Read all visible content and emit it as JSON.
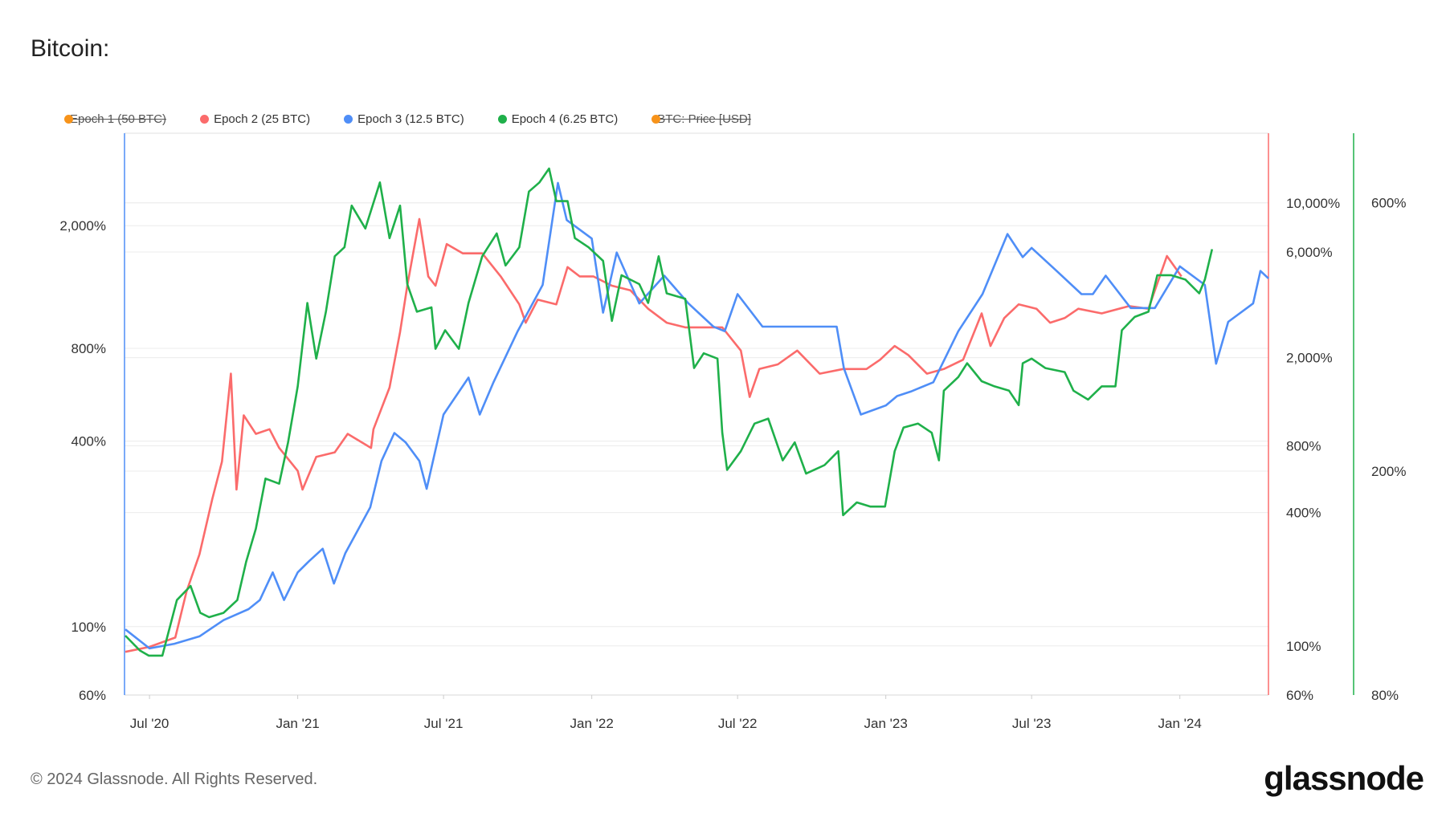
{
  "title": "Bitcoin:",
  "legend": [
    {
      "label": "Epoch 1 (50 BTC)",
      "color": "#f7931a",
      "hidden": true
    },
    {
      "label": "Epoch 2 (25 BTC)",
      "color": "#fb6b6b",
      "hidden": false
    },
    {
      "label": "Epoch 3 (12.5 BTC)",
      "color": "#4f8ef7",
      "hidden": false
    },
    {
      "label": "Epoch 4 (6.25 BTC)",
      "color": "#1fb04a",
      "hidden": false
    },
    {
      "label": "BTC: Price [USD]",
      "color": "#f7931a",
      "hidden": true
    }
  ],
  "footer": "© 2024 Glassnode. All Rights Reserved.",
  "logo": "glassnode",
  "chart_data": {
    "type": "line",
    "x_range": [
      "2020-05-31",
      "2024-04-20"
    ],
    "x_ticks": [
      {
        "date": "2020-07-01",
        "label": "Jul '20"
      },
      {
        "date": "2021-01-01",
        "label": "Jan '21"
      },
      {
        "date": "2021-07-01",
        "label": "Jul '21"
      },
      {
        "date": "2022-01-01",
        "label": "Jan '22"
      },
      {
        "date": "2022-07-01",
        "label": "Jul '22"
      },
      {
        "date": "2023-01-01",
        "label": "Jan '23"
      },
      {
        "date": "2023-07-01",
        "label": "Jul '23"
      },
      {
        "date": "2024-01-01",
        "label": "Jan '24"
      }
    ],
    "axes": {
      "left": {
        "scale": "log",
        "range": [
          60,
          5000
        ],
        "color": "#4f8ef7",
        "ticks": [
          {
            "v": 60,
            "label": "60%"
          },
          {
            "v": 100,
            "label": "100%"
          },
          {
            "v": 400,
            "label": "400%"
          },
          {
            "v": 800,
            "label": "800%"
          },
          {
            "v": 2000,
            "label": "2,000%"
          }
        ]
      },
      "right": {
        "scale": "log",
        "range": [
          60,
          30000
        ],
        "color": "#fb6b6b",
        "ticks": [
          {
            "v": 60,
            "label": "60%"
          },
          {
            "v": 100,
            "label": "100%"
          },
          {
            "v": 400,
            "label": "400%"
          },
          {
            "v": 800,
            "label": "800%"
          },
          {
            "v": 2000,
            "label": "2,000%"
          },
          {
            "v": 6000,
            "label": "6,000%"
          },
          {
            "v": 10000,
            "label": "10,000%"
          }
        ]
      },
      "right2": {
        "scale": "log",
        "range": [
          80,
          860
        ],
        "color": "#1fb04a",
        "ticks": [
          {
            "v": 80,
            "label": "80%"
          },
          {
            "v": 200,
            "label": "200%"
          },
          {
            "v": 600,
            "label": "600%"
          }
        ]
      }
    },
    "grid": true,
    "legend_position": "top-left",
    "series": [
      {
        "name": "Epoch 2 (25 BTC)",
        "axis": "right",
        "color": "#fb6b6b",
        "points": [
          [
            "2020-06-01",
            94
          ],
          [
            "2020-07-01",
            99
          ],
          [
            "2020-08-02",
            109
          ],
          [
            "2020-08-16",
            176
          ],
          [
            "2020-09-01",
            259
          ],
          [
            "2020-09-17",
            461
          ],
          [
            "2020-09-29",
            679
          ],
          [
            "2020-10-10",
            1694
          ],
          [
            "2020-10-17",
            508
          ],
          [
            "2020-10-26",
            1099
          ],
          [
            "2020-11-10",
            906
          ],
          [
            "2020-11-27",
            951
          ],
          [
            "2020-12-09",
            783
          ],
          [
            "2021-01-01",
            617
          ],
          [
            "2021-01-07",
            508
          ],
          [
            "2021-01-24",
            713
          ],
          [
            "2021-02-16",
            748
          ],
          [
            "2021-03-04",
            906
          ],
          [
            "2021-04-02",
            783
          ],
          [
            "2021-04-05",
            951
          ],
          [
            "2021-04-25",
            1466
          ],
          [
            "2021-05-08",
            2612
          ],
          [
            "2021-05-17",
            4227
          ],
          [
            "2021-06-01",
            8453
          ],
          [
            "2021-06-12",
            4656
          ],
          [
            "2021-06-21",
            4227
          ],
          [
            "2021-07-05",
            6516
          ],
          [
            "2021-07-25",
            5916
          ],
          [
            "2021-08-18",
            5916
          ],
          [
            "2021-09-10",
            4656
          ],
          [
            "2021-10-03",
            3483
          ],
          [
            "2021-10-11",
            2877
          ],
          [
            "2021-10-26",
            3656
          ],
          [
            "2021-11-18",
            3483
          ],
          [
            "2021-12-02",
            5129
          ],
          [
            "2021-12-17",
            4656
          ],
          [
            "2022-01-03",
            4656
          ],
          [
            "2022-01-26",
            4227
          ],
          [
            "2022-02-18",
            4027
          ],
          [
            "2022-03-12",
            3327
          ],
          [
            "2022-04-04",
            2877
          ],
          [
            "2022-04-27",
            2742
          ],
          [
            "2022-05-20",
            2742
          ],
          [
            "2022-06-12",
            2742
          ],
          [
            "2022-07-05",
            2153
          ],
          [
            "2022-07-16",
            1330
          ],
          [
            "2022-07-28",
            1778
          ],
          [
            "2022-08-20",
            1866
          ],
          [
            "2022-09-13",
            2153
          ],
          [
            "2022-10-11",
            1694
          ],
          [
            "2022-11-09",
            1778
          ],
          [
            "2022-12-08",
            1778
          ],
          [
            "2022-12-25",
            1959
          ],
          [
            "2023-01-12",
            2259
          ],
          [
            "2023-01-29",
            2056
          ],
          [
            "2023-02-21",
            1694
          ],
          [
            "2023-03-14",
            1778
          ],
          [
            "2023-04-07",
            1959
          ],
          [
            "2023-04-30",
            3170
          ],
          [
            "2023-05-11",
            2259
          ],
          [
            "2023-05-28",
            3020
          ],
          [
            "2023-06-15",
            3483
          ],
          [
            "2023-07-07",
            3327
          ],
          [
            "2023-07-24",
            2877
          ],
          [
            "2023-08-11",
            3020
          ],
          [
            "2023-08-28",
            3327
          ],
          [
            "2023-09-26",
            3170
          ],
          [
            "2023-10-30",
            3420
          ],
          [
            "2023-11-23",
            3327
          ],
          [
            "2023-12-16",
            5754
          ],
          [
            "2024-01-03",
            4656
          ]
        ]
      },
      {
        "name": "Epoch 3 (12.5 BTC)",
        "axis": "left",
        "color": "#4f8ef7",
        "points": [
          [
            "2020-06-01",
            98
          ],
          [
            "2020-07-01",
            85
          ],
          [
            "2020-08-01",
            88
          ],
          [
            "2020-09-01",
            93
          ],
          [
            "2020-10-01",
            105
          ],
          [
            "2020-11-01",
            114
          ],
          [
            "2020-11-15",
            122
          ],
          [
            "2020-12-01",
            150
          ],
          [
            "2020-12-15",
            122
          ],
          [
            "2021-01-01",
            150
          ],
          [
            "2021-01-15",
            163
          ],
          [
            "2021-02-01",
            179
          ],
          [
            "2021-02-15",
            138
          ],
          [
            "2021-03-01",
            173
          ],
          [
            "2021-04-01",
            244
          ],
          [
            "2021-04-15",
            345
          ],
          [
            "2021-05-01",
            425
          ],
          [
            "2021-05-15",
            396
          ],
          [
            "2021-06-01",
            345
          ],
          [
            "2021-06-10",
            280
          ],
          [
            "2021-07-01",
            488
          ],
          [
            "2021-08-01",
            643
          ],
          [
            "2021-08-15",
            488
          ],
          [
            "2021-09-01",
            621
          ],
          [
            "2021-10-01",
            909
          ],
          [
            "2021-11-01",
            1285
          ],
          [
            "2021-11-20",
            2754
          ],
          [
            "2021-12-01",
            2086
          ],
          [
            "2022-01-01",
            1817
          ],
          [
            "2022-01-15",
            1044
          ],
          [
            "2022-02-01",
            1637
          ],
          [
            "2022-03-01",
            1119
          ],
          [
            "2022-04-01",
            1377
          ],
          [
            "2022-05-01",
            1119
          ],
          [
            "2022-06-01",
            941
          ],
          [
            "2022-06-15",
            909
          ],
          [
            "2022-07-01",
            1199
          ],
          [
            "2022-08-01",
            941
          ],
          [
            "2022-09-01",
            941
          ],
          [
            "2022-10-01",
            941
          ],
          [
            "2022-11-01",
            941
          ],
          [
            "2022-11-10",
            689
          ],
          [
            "2022-12-01",
            488
          ],
          [
            "2023-01-01",
            522
          ],
          [
            "2023-01-15",
            560
          ],
          [
            "2023-02-01",
            579
          ],
          [
            "2023-03-01",
            621
          ],
          [
            "2023-04-01",
            909
          ],
          [
            "2023-05-01",
            1199
          ],
          [
            "2023-06-01",
            1879
          ],
          [
            "2023-06-20",
            1581
          ],
          [
            "2023-07-01",
            1694
          ],
          [
            "2023-08-01",
            1426
          ],
          [
            "2023-09-01",
            1199
          ],
          [
            "2023-09-15",
            1199
          ],
          [
            "2023-10-01",
            1377
          ],
          [
            "2023-11-01",
            1081
          ],
          [
            "2023-12-01",
            1081
          ],
          [
            "2024-01-01",
            1476
          ],
          [
            "2024-02-01",
            1285
          ],
          [
            "2024-02-15",
            713
          ],
          [
            "2024-03-01",
            975
          ],
          [
            "2024-04-01",
            1119
          ],
          [
            "2024-04-10",
            1426
          ],
          [
            "2024-04-20",
            1349
          ]
        ]
      },
      {
        "name": "Epoch 4 (6.25 BTC)",
        "axis": "right2",
        "color": "#1fb04a",
        "points": [
          [
            "2020-06-01",
            102
          ],
          [
            "2020-06-19",
            96
          ],
          [
            "2020-06-30",
            94
          ],
          [
            "2020-07-17",
            94
          ],
          [
            "2020-08-04",
            118
          ],
          [
            "2020-08-21",
            125
          ],
          [
            "2020-09-02",
            112
          ],
          [
            "2020-09-13",
            110
          ],
          [
            "2020-10-01",
            112
          ],
          [
            "2020-10-18",
            118
          ],
          [
            "2020-10-29",
            138
          ],
          [
            "2020-11-10",
            158
          ],
          [
            "2020-11-22",
            194
          ],
          [
            "2020-12-09",
            190
          ],
          [
            "2020-12-20",
            225
          ],
          [
            "2021-01-01",
            283
          ],
          [
            "2021-01-13",
            398
          ],
          [
            "2021-01-24",
            317
          ],
          [
            "2021-02-05",
            384
          ],
          [
            "2021-02-16",
            482
          ],
          [
            "2021-02-28",
            500
          ],
          [
            "2021-03-09",
            593
          ],
          [
            "2021-03-26",
            540
          ],
          [
            "2021-04-13",
            652
          ],
          [
            "2021-04-25",
            519
          ],
          [
            "2021-05-08",
            593
          ],
          [
            "2021-05-17",
            430
          ],
          [
            "2021-05-29",
            384
          ],
          [
            "2021-06-16",
            391
          ],
          [
            "2021-06-21",
            330
          ],
          [
            "2021-07-03",
            356
          ],
          [
            "2021-07-20",
            330
          ],
          [
            "2021-08-01",
            398
          ],
          [
            "2021-08-18",
            482
          ],
          [
            "2021-09-05",
            529
          ],
          [
            "2021-09-16",
            464
          ],
          [
            "2021-10-03",
            500
          ],
          [
            "2021-10-15",
            628
          ],
          [
            "2021-10-28",
            652
          ],
          [
            "2021-11-09",
            690
          ],
          [
            "2021-11-18",
            604
          ],
          [
            "2021-12-02",
            604
          ],
          [
            "2021-12-11",
            519
          ],
          [
            "2021-12-28",
            500
          ],
          [
            "2022-01-15",
            473
          ],
          [
            "2022-01-26",
            370
          ],
          [
            "2022-02-07",
            446
          ],
          [
            "2022-03-01",
            430
          ],
          [
            "2022-03-12",
            398
          ],
          [
            "2022-03-25",
            482
          ],
          [
            "2022-04-04",
            414
          ],
          [
            "2022-04-27",
            405
          ],
          [
            "2022-05-08",
            305
          ],
          [
            "2022-05-20",
            324
          ],
          [
            "2022-06-06",
            317
          ],
          [
            "2022-06-12",
            234
          ],
          [
            "2022-06-18",
            201
          ],
          [
            "2022-07-05",
            217
          ],
          [
            "2022-07-22",
            243
          ],
          [
            "2022-08-08",
            248
          ],
          [
            "2022-08-26",
            209
          ],
          [
            "2022-09-10",
            225
          ],
          [
            "2022-09-24",
            198
          ],
          [
            "2022-10-17",
            205
          ],
          [
            "2022-11-03",
            217
          ],
          [
            "2022-11-09",
            167
          ],
          [
            "2022-11-26",
            176
          ],
          [
            "2022-12-13",
            173
          ],
          [
            "2022-12-31",
            173
          ],
          [
            "2023-01-12",
            217
          ],
          [
            "2023-01-23",
            239
          ],
          [
            "2023-02-10",
            243
          ],
          [
            "2023-02-27",
            234
          ],
          [
            "2023-03-08",
            209
          ],
          [
            "2023-03-14",
            278
          ],
          [
            "2023-04-01",
            294
          ],
          [
            "2023-04-12",
            311
          ],
          [
            "2023-04-30",
            289
          ],
          [
            "2023-05-16",
            283
          ],
          [
            "2023-06-03",
            278
          ],
          [
            "2023-06-15",
            262
          ],
          [
            "2023-06-20",
            311
          ],
          [
            "2023-07-01",
            317
          ],
          [
            "2023-07-18",
            305
          ],
          [
            "2023-08-11",
            300
          ],
          [
            "2023-08-22",
            278
          ],
          [
            "2023-09-09",
            268
          ],
          [
            "2023-09-26",
            283
          ],
          [
            "2023-10-13",
            283
          ],
          [
            "2023-10-21",
            356
          ],
          [
            "2023-11-06",
            376
          ],
          [
            "2023-11-23",
            384
          ],
          [
            "2023-12-04",
            446
          ],
          [
            "2023-12-21",
            446
          ],
          [
            "2024-01-08",
            438
          ],
          [
            "2024-01-25",
            414
          ],
          [
            "2024-02-01",
            438
          ],
          [
            "2024-02-10",
            496
          ]
        ]
      }
    ]
  }
}
